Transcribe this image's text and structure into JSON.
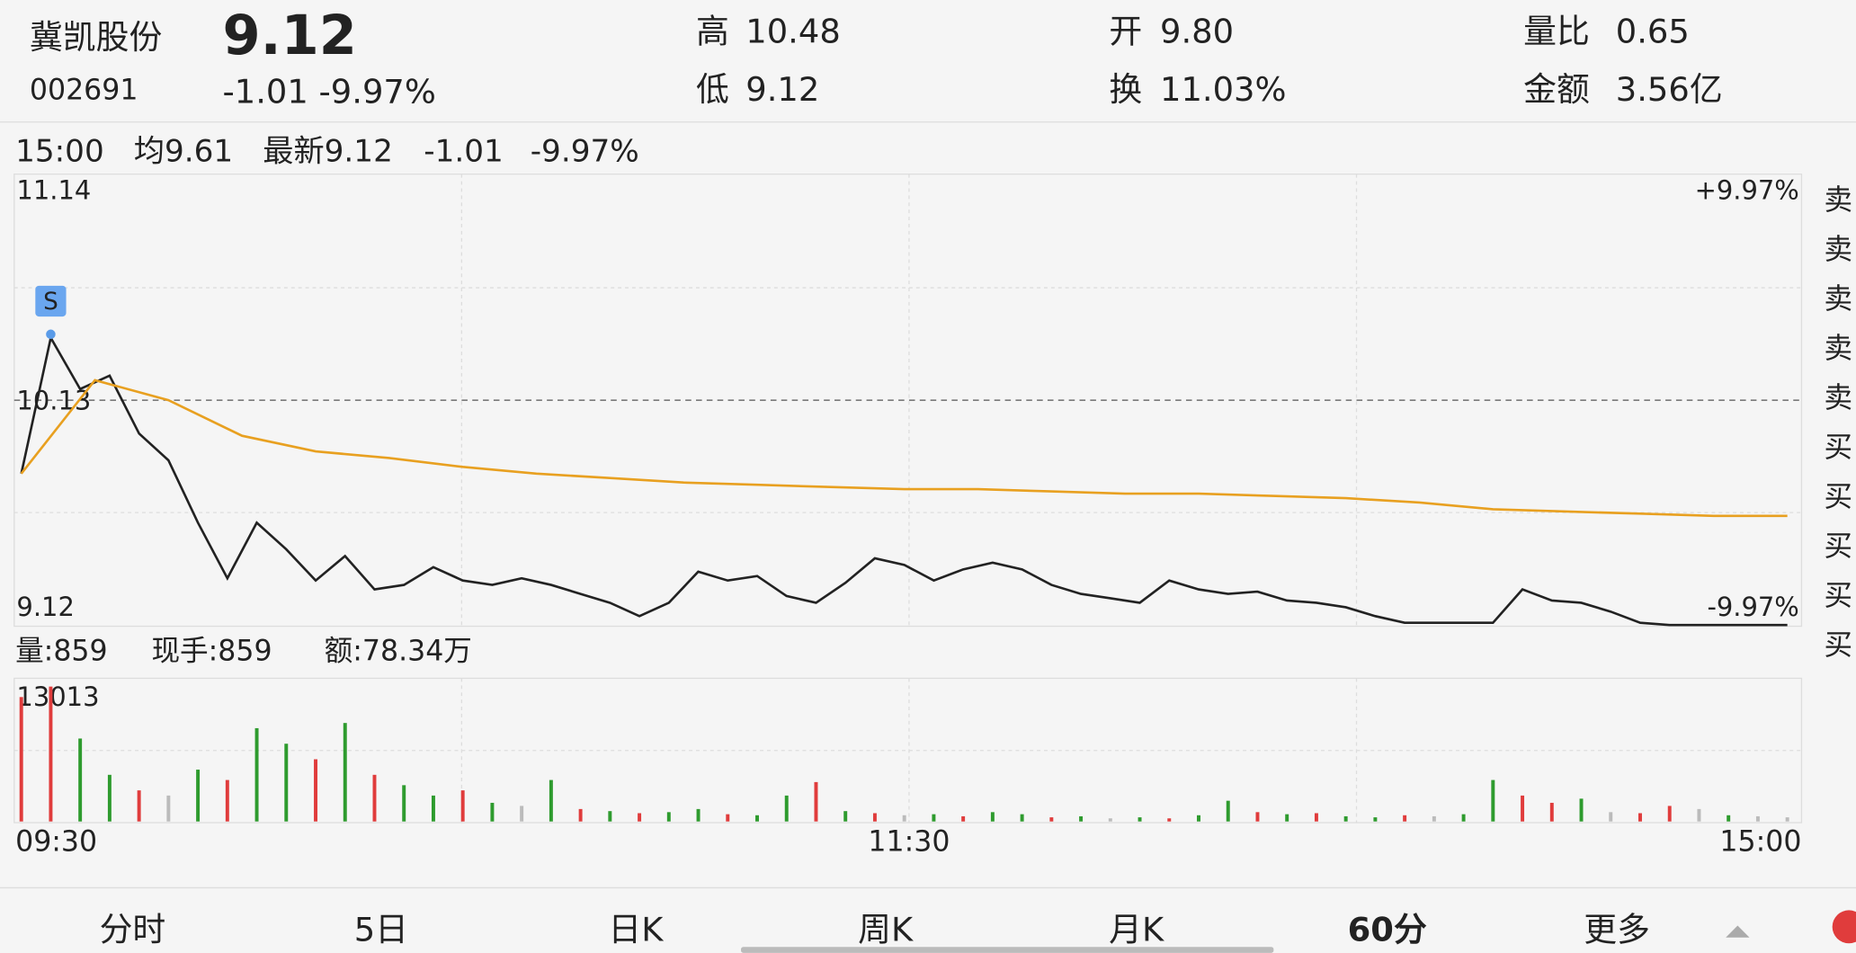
{
  "header": {
    "name": "冀凯股份",
    "price": "9.12",
    "code": "002691",
    "change": "-1.01 -9.97%",
    "stats": [
      {
        "label": "高",
        "value": "10.48",
        "color": "#e03c3c"
      },
      {
        "label": "低",
        "value": "9.12",
        "color": "#2e9b2e"
      },
      {
        "label": "开",
        "value": "9.80",
        "color": "#2e9b2e"
      },
      {
        "label": "换",
        "value": "11.03%",
        "color": "#222"
      },
      {
        "label": "量比",
        "value": "0.65",
        "color": "#2e9b2e"
      },
      {
        "label": "金额",
        "value": "3.56亿",
        "color": "#222"
      }
    ]
  },
  "info": {
    "time": "15:00",
    "avg": "均9.61",
    "latest": "最新9.12",
    "change": "-1.01",
    "pct": "-9.97%"
  },
  "chart": {
    "type": "line",
    "ylim": [
      9.12,
      11.14
    ],
    "yticks": [
      11.14,
      10.13,
      9.12
    ],
    "right_labels": [
      "+9.97%",
      "-9.97%"
    ],
    "marker": "S",
    "xticks": [
      "09:30",
      "11:30",
      "15:00"
    ],
    "series": [
      {
        "name": "最新",
        "color": "#222",
        "values": [
          9.8,
          10.41,
          10.18,
          10.24,
          9.98,
          9.86,
          9.58,
          9.33,
          9.58,
          9.46,
          9.32,
          9.43,
          9.28,
          9.3,
          9.38,
          9.32,
          9.3,
          9.33,
          9.3,
          9.26,
          9.22,
          9.16,
          9.22,
          9.36,
          9.32,
          9.34,
          9.25,
          9.22,
          9.31,
          9.42,
          9.39,
          9.32,
          9.37,
          9.4,
          9.37,
          9.3,
          9.26,
          9.24,
          9.22,
          9.32,
          9.28,
          9.26,
          9.27,
          9.23,
          9.22,
          9.2,
          9.16,
          9.13,
          9.13,
          9.13,
          9.13,
          9.28,
          9.23,
          9.22,
          9.18,
          9.13,
          9.12,
          9.12,
          9.12,
          9.12,
          9.12
        ]
      },
      {
        "name": "均",
        "color": "#e8a020",
        "values": [
          9.8,
          10.22,
          10.13,
          9.97,
          9.9,
          9.87,
          9.83,
          9.8,
          9.78,
          9.76,
          9.75,
          9.74,
          9.73,
          9.73,
          9.72,
          9.71,
          9.71,
          9.7,
          9.69,
          9.67,
          9.64,
          9.63,
          9.62,
          9.61,
          9.61
        ]
      }
    ]
  },
  "volume": {
    "info": [
      "量:859",
      "现手:859",
      "额:78.34万"
    ],
    "ylim": [
      0,
      13013
    ],
    "yticks": [
      13013
    ],
    "values": [
      12000,
      13013,
      8000,
      4500,
      3000,
      2500,
      5000,
      4000,
      9000,
      7500,
      6000,
      9500,
      4500,
      3500,
      2500,
      3000,
      1800,
      1500,
      4000,
      1200,
      1000,
      800,
      900,
      1200,
      700,
      600,
      2500,
      3800,
      1000,
      800,
      600,
      700,
      500,
      900,
      700,
      400,
      500,
      300,
      400,
      300,
      600,
      2000,
      900,
      700,
      800,
      500,
      400,
      600,
      500,
      700,
      4000,
      2500,
      1800,
      2200,
      900,
      800,
      1500,
      1200,
      600,
      500,
      400
    ],
    "colors": [
      "#e03c3c",
      "#e03c3c",
      "#2e9b2e",
      "#2e9b2e",
      "#e03c3c",
      "#bbbbbb",
      "#2e9b2e",
      "#e03c3c",
      "#2e9b2e",
      "#2e9b2e",
      "#e03c3c",
      "#2e9b2e",
      "#e03c3c",
      "#2e9b2e",
      "#2e9b2e",
      "#e03c3c",
      "#2e9b2e",
      "#bbbbbb",
      "#2e9b2e",
      "#e03c3c",
      "#2e9b2e",
      "#e03c3c",
      "#2e9b2e",
      "#2e9b2e",
      "#e03c3c",
      "#2e9b2e",
      "#2e9b2e",
      "#e03c3c",
      "#2e9b2e",
      "#e03c3c",
      "#bbbbbb",
      "#2e9b2e",
      "#e03c3c",
      "#2e9b2e",
      "#2e9b2e",
      "#e03c3c",
      "#2e9b2e",
      "#bbbbbb",
      "#2e9b2e",
      "#e03c3c",
      "#2e9b2e",
      "#2e9b2e",
      "#e03c3c",
      "#2e9b2e",
      "#e03c3c",
      "#2e9b2e",
      "#2e9b2e",
      "#e03c3c",
      "#bbbbbb",
      "#2e9b2e",
      "#2e9b2e",
      "#e03c3c",
      "#e03c3c",
      "#2e9b2e",
      "#bbbbbb",
      "#e03c3c",
      "#e03c3c",
      "#bbbbbb",
      "#2e9b2e",
      "#bbbbbb",
      "#bbbbbb"
    ]
  },
  "side": [
    "卖",
    "卖",
    "卖",
    "卖",
    "卖",
    "买",
    "买",
    "买",
    "买",
    "买"
  ],
  "tabs": [
    "分时",
    "5日",
    "日K",
    "周K",
    "月K",
    "60分",
    "更多"
  ]
}
